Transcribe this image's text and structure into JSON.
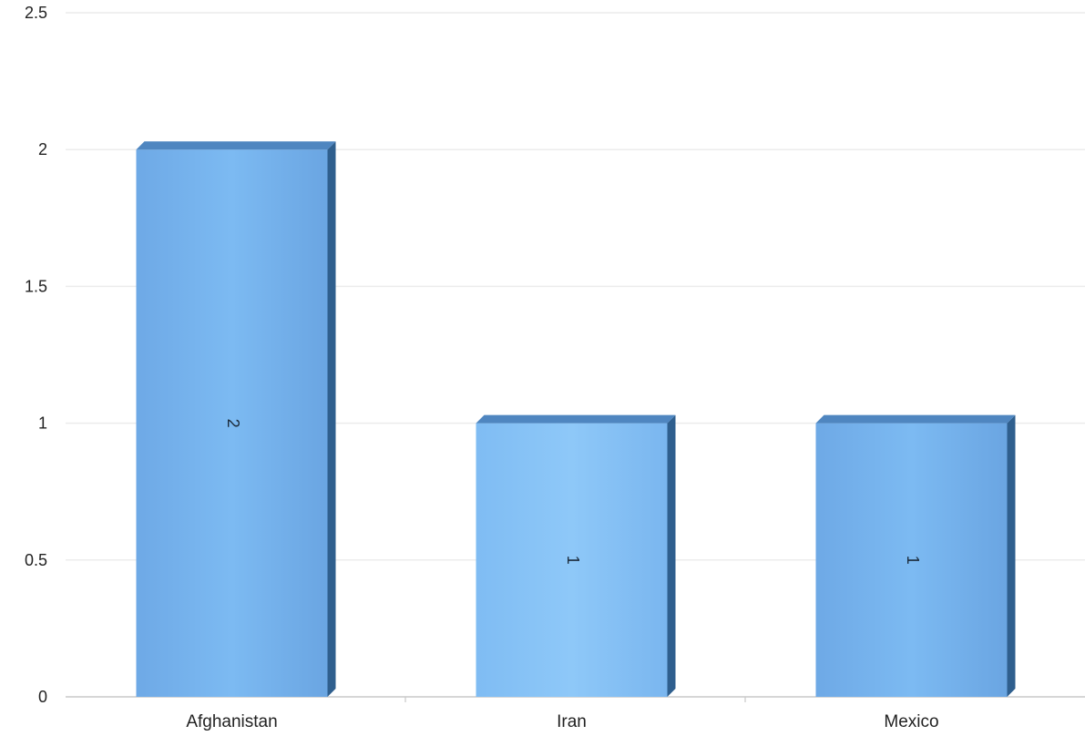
{
  "chart_data": {
    "type": "bar",
    "categories": [
      "Afghanistan",
      "Iran",
      "Mexico"
    ],
    "values": [
      2,
      1,
      1
    ],
    "data_labels": [
      "2",
      "1",
      "1"
    ],
    "ylim": [
      0,
      2.5
    ],
    "yticks": [
      0,
      0.5,
      1,
      1.5,
      2,
      2.5
    ],
    "ytick_labels": [
      "0",
      "0.5",
      "1",
      "1.5",
      "2",
      "2.5"
    ],
    "title": "",
    "xlabel": "",
    "ylabel": "",
    "grid": true,
    "legend": "none",
    "style": "3d",
    "data_label_rotation": "vertical",
    "colors": {
      "bar_light": "#8cc6f7",
      "bar_mid": "#73b1ec",
      "bar_dark": "#5e9ad9",
      "bar_side": "#2f5f8e",
      "bar_top": "#4f86c0",
      "grid": "#ececec",
      "axis": "#c8c8c8"
    }
  }
}
